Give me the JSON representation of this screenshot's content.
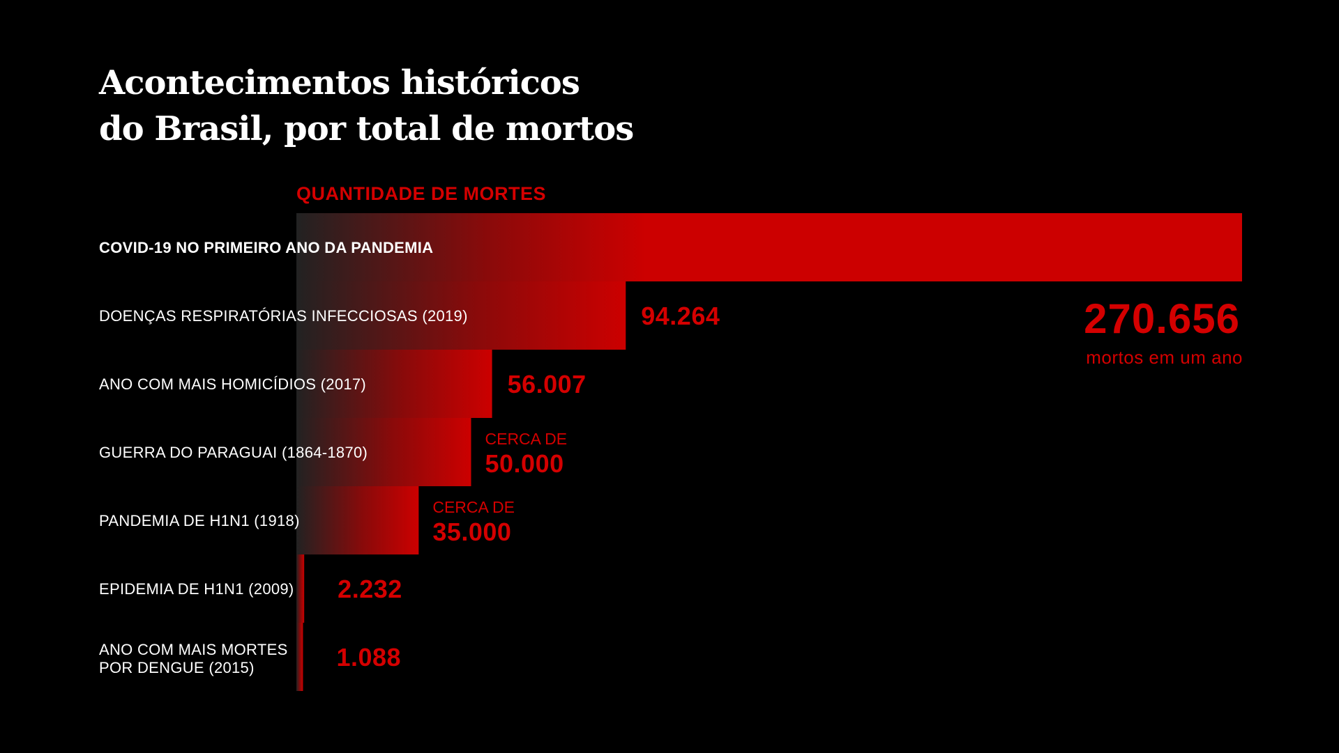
{
  "title_lines": [
    "Acontecimentos históricos",
    "do Brasil, por total de mortos"
  ],
  "colors": {
    "background": "#000000",
    "bar": "#cc0000",
    "bar_fade": "#222222",
    "accent": "#d40000",
    "label": "#ffffff"
  },
  "chart_data": {
    "type": "bar",
    "orientation": "horizontal",
    "title": "Acontecimentos históricos do Brasil, por total de mortos",
    "axis_label": "QUANTIDADE DE MORTES",
    "xlim": [
      0,
      270656
    ],
    "grid": false,
    "categories": [
      [
        "COVID-19 NO PRIMEIRO ANO DA PANDEMIA"
      ],
      [
        "DOENÇAS RESPIRATÓRIAS INFECCIOSAS (2019)"
      ],
      [
        "ANO COM MAIS HOMICÍDIOS (2017)"
      ],
      [
        "GUERRA DO PARAGUAI (1864-1870)"
      ],
      [
        "PANDEMIA DE H1N1 (1918)"
      ],
      [
        "EPIDEMIA DE H1N1 (2009)"
      ],
      [
        "ANO COM MAIS MORTES",
        "POR DENGUE (2015)"
      ]
    ],
    "values": [
      270656,
      94264,
      56007,
      50000,
      35000,
      2232,
      1088
    ],
    "value_labels": [
      {
        "value": "270.656",
        "note": "mortos em um ano"
      },
      {
        "value": "94.264"
      },
      {
        "value": "56.007"
      },
      {
        "prefix": "CERCA DE",
        "value": "50.000"
      },
      {
        "prefix": "CERCA DE",
        "value": "35.000"
      },
      {
        "value": "2.232"
      },
      {
        "value": "1.088"
      }
    ]
  }
}
